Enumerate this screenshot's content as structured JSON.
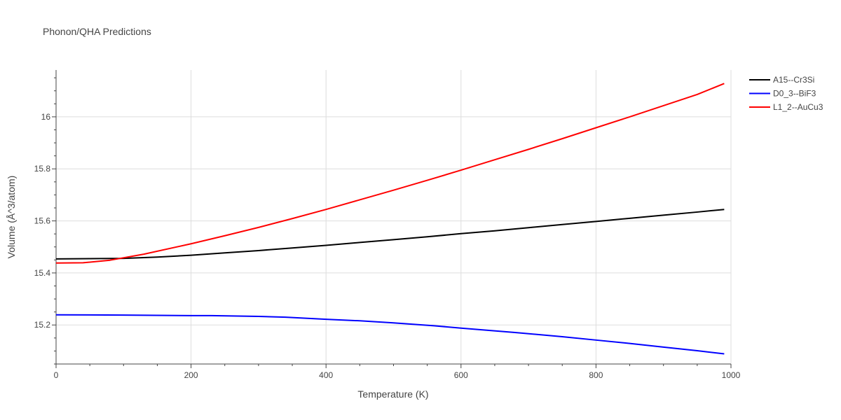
{
  "chart_data": {
    "type": "line",
    "title": "Phonon/QHA Predictions",
    "xlabel": "Temperature (K)",
    "ylabel": "Volume (Å^3/atom)",
    "xlim": [
      0,
      1000
    ],
    "ylim": [
      15.05,
      16.18
    ],
    "xticks": [
      0,
      200,
      400,
      600,
      800,
      1000
    ],
    "yticks": [
      15.2,
      15.4,
      15.6,
      15.8,
      16
    ],
    "grid": true,
    "legend_position": "top-right",
    "series": [
      {
        "name": "A15--Cr3Si",
        "color": "#000000",
        "x": [
          0,
          50,
          100,
          150,
          200,
          250,
          300,
          350,
          400,
          450,
          500,
          550,
          600,
          650,
          700,
          750,
          800,
          850,
          900,
          950,
          990
        ],
        "y": [
          15.454,
          15.455,
          15.456,
          15.461,
          15.468,
          15.477,
          15.486,
          15.496,
          15.506,
          15.517,
          15.528,
          15.539,
          15.551,
          15.562,
          15.574,
          15.586,
          15.598,
          15.61,
          15.622,
          15.634,
          15.644
        ]
      },
      {
        "name": "D0_3--BiF3",
        "color": "#0000ff",
        "x": [
          0,
          100,
          200,
          230,
          300,
          340,
          400,
          450,
          500,
          560,
          600,
          680,
          750,
          800,
          850,
          900,
          950,
          990
        ],
        "y": [
          15.239,
          15.238,
          15.236,
          15.236,
          15.233,
          15.23,
          15.222,
          15.216,
          15.208,
          15.197,
          15.188,
          15.171,
          15.155,
          15.142,
          15.129,
          15.115,
          15.101,
          15.089
        ]
      },
      {
        "name": "L1_2--AuCu3",
        "color": "#ff0000",
        "x": [
          0,
          40,
          80,
          130,
          200,
          250,
          300,
          350,
          400,
          450,
          500,
          550,
          600,
          650,
          700,
          750,
          800,
          850,
          900,
          950,
          990
        ],
        "y": [
          15.438,
          15.439,
          15.449,
          15.472,
          15.512,
          15.543,
          15.575,
          15.609,
          15.644,
          15.681,
          15.718,
          15.756,
          15.795,
          15.835,
          15.875,
          15.916,
          15.958,
          16.0,
          16.043,
          16.086,
          16.128
        ]
      }
    ]
  }
}
